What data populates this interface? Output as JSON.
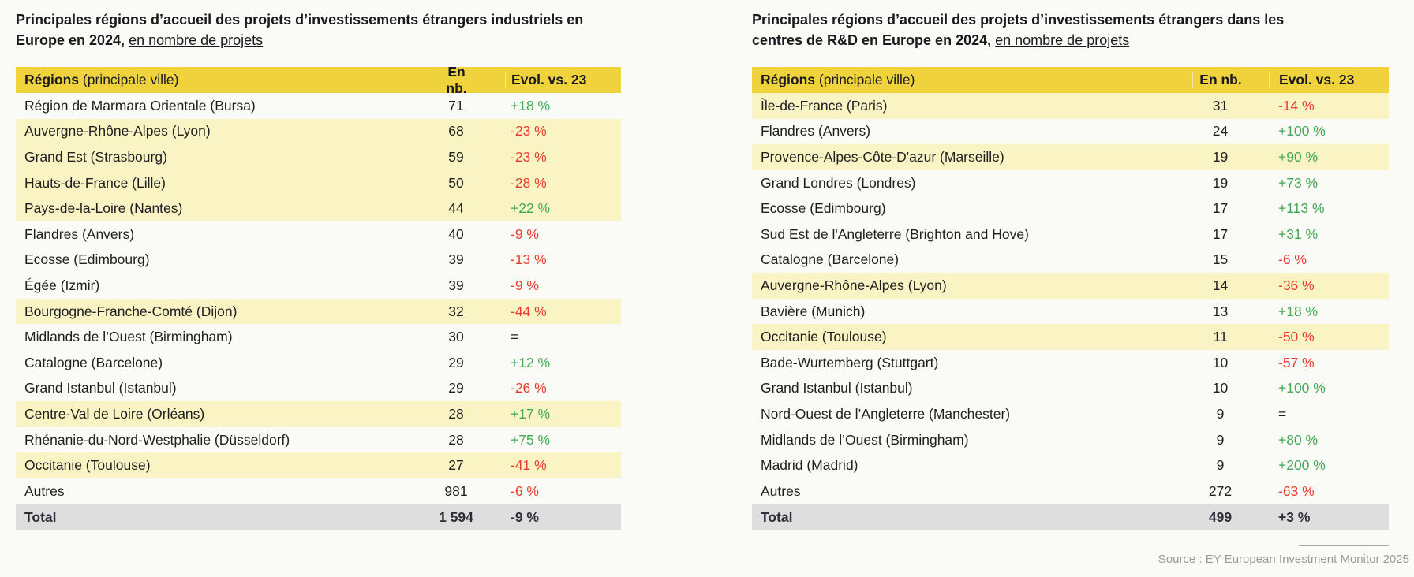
{
  "source": "Source : EY European Investment Monitor 2025",
  "colors": {
    "header_yellow": "#F0D23C",
    "highlight_row": "#FAF4C5",
    "total_row_gray": "#DEDEDE",
    "positive_green": "#42A953",
    "negative_red": "#EB3C2E",
    "source_gray": "#9B9B9B"
  },
  "chart_data": [
    {
      "type": "table",
      "title_line1": "Principales régions d’accueil des projets d’investissements étrangers industriels en",
      "title_line2": "Europe en 2024,",
      "title_underline": "en nombre de projets",
      "columns": {
        "region_bold": "Régions",
        "region_note": "(principale ville)",
        "count": "En nb.",
        "evolution": "Evol. vs. 23"
      },
      "rows": [
        {
          "region": "Région de Marmara Orientale (Bursa)",
          "count": "71",
          "evolution": "+18 %",
          "trend": "up",
          "highlight": false
        },
        {
          "region": "Auvergne-Rhône-Alpes (Lyon)",
          "count": "68",
          "evolution": "-23 %",
          "trend": "down",
          "highlight": true
        },
        {
          "region": "Grand Est (Strasbourg)",
          "count": "59",
          "evolution": "-23 %",
          "trend": "down",
          "highlight": true
        },
        {
          "region": "Hauts-de-France (Lille)",
          "count": "50",
          "evolution": "-28 %",
          "trend": "down",
          "highlight": true
        },
        {
          "region": "Pays-de-la-Loire (Nantes)",
          "count": "44",
          "evolution": "+22 %",
          "trend": "up",
          "highlight": true
        },
        {
          "region": "Flandres (Anvers)",
          "count": "40",
          "evolution": "-9 %",
          "trend": "down",
          "highlight": false
        },
        {
          "region": "Ecosse (Edimbourg)",
          "count": "39",
          "evolution": "-13 %",
          "trend": "down",
          "highlight": false
        },
        {
          "region": "Égée (Izmir)",
          "count": "39",
          "evolution": "-9 %",
          "trend": "down",
          "highlight": false
        },
        {
          "region": "Bourgogne-Franche-Comté (Dijon)",
          "count": "32",
          "evolution": "-44 %",
          "trend": "down",
          "highlight": true
        },
        {
          "region": "Midlands de l’Ouest (Birmingham)",
          "count": "30",
          "evolution": "=",
          "trend": "flat",
          "highlight": false
        },
        {
          "region": "Catalogne (Barcelone)",
          "count": "29",
          "evolution": "+12 %",
          "trend": "up",
          "highlight": false
        },
        {
          "region": "Grand Istanbul (Istanbul)",
          "count": "29",
          "evolution": "-26 %",
          "trend": "down",
          "highlight": false
        },
        {
          "region": "Centre-Val de Loire (Orléans)",
          "count": "28",
          "evolution": "+17 %",
          "trend": "up",
          "highlight": true
        },
        {
          "region": "Rhénanie-du-Nord-Westphalie (Düsseldorf)",
          "count": "28",
          "evolution": "+75 %",
          "trend": "up",
          "highlight": false
        },
        {
          "region": "Occitanie (Toulouse)",
          "count": "27",
          "evolution": "-41 %",
          "trend": "down",
          "highlight": true
        },
        {
          "region": "Autres",
          "count": "981",
          "evolution": "-6 %",
          "trend": "down",
          "highlight": false
        }
      ],
      "total": {
        "label": "Total",
        "count": "1 594",
        "evolution": "-9 %"
      }
    },
    {
      "type": "table",
      "title_line1": "Principales régions d’accueil des projets d’investissements étrangers dans les",
      "title_line2": "centres de R&D en Europe en 2024,",
      "title_underline": "en nombre de projets",
      "columns": {
        "region_bold": "Régions",
        "region_note": "(principale ville)",
        "count": "En nb.",
        "evolution": "Evol. vs. 23"
      },
      "rows": [
        {
          "region": "Île-de-France (Paris)",
          "count": "31",
          "evolution": "-14 %",
          "trend": "down",
          "highlight": true
        },
        {
          "region": "Flandres (Anvers)",
          "count": "24",
          "evolution": "+100 %",
          "trend": "up",
          "highlight": false
        },
        {
          "region": "Provence-Alpes-Côte-D'azur (Marseille)",
          "count": "19",
          "evolution": "+90 %",
          "trend": "up",
          "highlight": true
        },
        {
          "region": "Grand Londres (Londres)",
          "count": "19",
          "evolution": "+73 %",
          "trend": "up",
          "highlight": false
        },
        {
          "region": "Ecosse (Edimbourg)",
          "count": "17",
          "evolution": "+113 %",
          "trend": "up",
          "highlight": false
        },
        {
          "region": "Sud Est de l'Angleterre (Brighton and Hove)",
          "count": "17",
          "evolution": "+31 %",
          "trend": "up",
          "highlight": false
        },
        {
          "region": "Catalogne (Barcelone)",
          "count": "15",
          "evolution": "-6 %",
          "trend": "down",
          "highlight": false
        },
        {
          "region": "Auvergne-Rhône-Alpes (Lyon)",
          "count": "14",
          "evolution": "-36 %",
          "trend": "down",
          "highlight": true
        },
        {
          "region": "Bavière (Munich)",
          "count": "13",
          "evolution": "+18 %",
          "trend": "up",
          "highlight": false
        },
        {
          "region": "Occitanie (Toulouse)",
          "count": "11",
          "evolution": "-50 %",
          "trend": "down",
          "highlight": true
        },
        {
          "region": "Bade-Wurtemberg (Stuttgart)",
          "count": "10",
          "evolution": "-57 %",
          "trend": "down",
          "highlight": false
        },
        {
          "region": "Grand Istanbul (Istanbul)",
          "count": "10",
          "evolution": "+100 %",
          "trend": "up",
          "highlight": false
        },
        {
          "region": "Nord-Ouest de l’Angleterre (Manchester)",
          "count": "9",
          "evolution": "=",
          "trend": "flat",
          "highlight": false
        },
        {
          "region": "Midlands de l’Ouest (Birmingham)",
          "count": "9",
          "evolution": "+80 %",
          "trend": "up",
          "highlight": false
        },
        {
          "region": "Madrid (Madrid)",
          "count": "9",
          "evolution": "+200 %",
          "trend": "up",
          "highlight": false
        },
        {
          "region": "Autres",
          "count": "272",
          "evolution": "-63 %",
          "trend": "down",
          "highlight": false
        }
      ],
      "total": {
        "label": "Total",
        "count": "499",
        "evolution": "+3 %"
      }
    }
  ]
}
